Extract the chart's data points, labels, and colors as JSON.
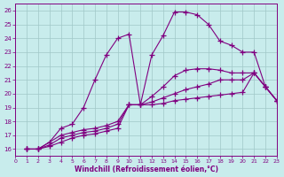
{
  "xlabel": "Windchill (Refroidissement éolien,°C)",
  "bg_color": "#c8ecec",
  "line_color": "#800080",
  "grid_color": "#a0c8c8",
  "xlim": [
    0,
    23
  ],
  "ylim": [
    15.5,
    26.5
  ],
  "yticks": [
    16,
    17,
    18,
    19,
    20,
    21,
    22,
    23,
    24,
    25,
    26
  ],
  "xticks": [
    0,
    1,
    2,
    3,
    4,
    5,
    6,
    7,
    8,
    9,
    10,
    11,
    12,
    13,
    14,
    15,
    16,
    17,
    18,
    19,
    20,
    21,
    22,
    23
  ],
  "lines": [
    {
      "x": [
        1,
        2,
        3,
        4,
        5,
        6,
        7,
        8,
        9,
        10,
        11,
        12,
        13,
        14,
        15,
        16,
        17,
        18,
        19,
        20,
        21,
        22,
        23
      ],
      "y": [
        16.0,
        16.0,
        16.5,
        17.5,
        17.8,
        19.0,
        21.0,
        22.8,
        24.0,
        24.3,
        19.2,
        22.8,
        24.2,
        25.9,
        25.9,
        25.7,
        25.0,
        23.8,
        23.5,
        23.0,
        23.0,
        20.5,
        19.5
      ]
    },
    {
      "x": [
        1,
        2,
        3,
        4,
        5,
        6,
        7,
        8,
        9,
        10,
        11,
        12,
        13,
        14,
        15,
        16,
        17,
        18,
        19,
        20,
        21,
        22,
        23
      ],
      "y": [
        16.0,
        16.0,
        16.5,
        17.0,
        17.2,
        17.4,
        17.5,
        17.7,
        18.0,
        19.2,
        19.2,
        19.8,
        20.5,
        21.3,
        21.7,
        21.8,
        21.8,
        21.7,
        21.5,
        21.5,
        21.5,
        20.5,
        19.5
      ]
    },
    {
      "x": [
        1,
        2,
        3,
        4,
        5,
        6,
        7,
        8,
        9,
        10,
        11,
        12,
        13,
        14,
        15,
        16,
        17,
        18,
        19,
        20,
        21,
        22,
        23
      ],
      "y": [
        16.0,
        16.0,
        16.3,
        16.8,
        17.0,
        17.2,
        17.3,
        17.5,
        17.8,
        19.2,
        19.2,
        19.4,
        19.7,
        20.0,
        20.3,
        20.5,
        20.7,
        21.0,
        21.0,
        21.0,
        21.5,
        20.5,
        19.5
      ]
    },
    {
      "x": [
        1,
        2,
        3,
        4,
        5,
        6,
        7,
        8,
        9,
        10,
        11,
        12,
        13,
        14,
        15,
        16,
        17,
        18,
        19,
        20,
        21,
        22,
        23
      ],
      "y": [
        16.0,
        16.0,
        16.2,
        16.5,
        16.8,
        17.0,
        17.1,
        17.3,
        17.5,
        19.2,
        19.2,
        19.2,
        19.3,
        19.5,
        19.6,
        19.7,
        19.8,
        19.9,
        20.0,
        20.1,
        21.5,
        20.5,
        19.5
      ]
    }
  ]
}
